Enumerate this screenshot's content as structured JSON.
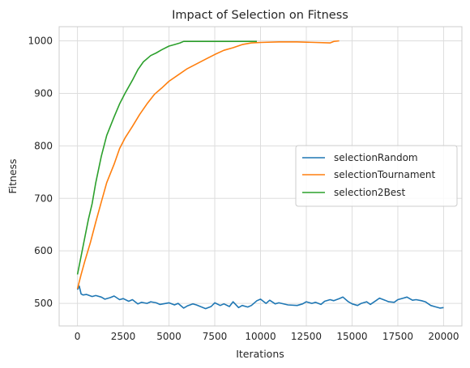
{
  "chart_data": {
    "type": "line",
    "title": "Impact of Selection on Fitness",
    "xlabel": "Iterations",
    "ylabel": "Fitness",
    "xlim": [
      -1000,
      21000
    ],
    "ylim": [
      457,
      1027
    ],
    "xticks": [
      0,
      2500,
      5000,
      7500,
      10000,
      12500,
      15000,
      17500,
      20000
    ],
    "yticks": [
      500,
      600,
      700,
      800,
      900,
      1000
    ],
    "grid": true,
    "legend_position": "center-right",
    "series": [
      {
        "name": "selectionRandom",
        "color": "#1f77b4",
        "x": [
          0,
          100,
          200,
          300,
          500,
          800,
          1000,
          1300,
          1500,
          1800,
          2000,
          2300,
          2500,
          2800,
          3000,
          3300,
          3500,
          3800,
          4000,
          4300,
          4500,
          5000,
          5300,
          5500,
          5800,
          6000,
          6300,
          6500,
          7000,
          7300,
          7500,
          7800,
          8000,
          8300,
          8500,
          8800,
          9000,
          9300,
          9500,
          9800,
          10000,
          10300,
          10500,
          10800,
          11000,
          11500,
          12000,
          12300,
          12500,
          12800,
          13000,
          13300,
          13500,
          13800,
          14000,
          14300,
          14500,
          14800,
          15000,
          15300,
          15500,
          15800,
          16000,
          16300,
          16500,
          16800,
          17000,
          17300,
          17500,
          17800,
          18000,
          18300,
          18500,
          18800,
          19000,
          19300,
          19500,
          19800,
          20000
        ],
        "y": [
          526,
          533,
          518,
          516,
          517,
          513,
          515,
          512,
          508,
          511,
          514,
          507,
          509,
          504,
          507,
          499,
          502,
          500,
          503,
          501,
          498,
          501,
          497,
          500,
          491,
          495,
          499,
          497,
          490,
          494,
          501,
          496,
          499,
          494,
          503,
          492,
          496,
          493,
          496,
          505,
          508,
          500,
          506,
          499,
          501,
          497,
          496,
          499,
          503,
          500,
          502,
          498,
          504,
          507,
          505,
          509,
          512,
          503,
          499,
          496,
          500,
          503,
          498,
          505,
          510,
          506,
          503,
          502,
          507,
          510,
          512,
          506,
          507,
          505,
          503,
          496,
          494,
          491,
          492
        ]
      },
      {
        "name": "selectionTournament",
        "color": "#ff7f0e",
        "x": [
          0,
          200,
          400,
          700,
          1000,
          1300,
          1600,
          2000,
          2300,
          2600,
          3000,
          3400,
          3800,
          4200,
          4600,
          5000,
          5500,
          6000,
          6500,
          7000,
          7500,
          8000,
          8500,
          9000,
          9500,
          10000,
          11000,
          12000,
          13000,
          13800,
          14000,
          14300
        ],
        "y": [
          528,
          555,
          580,
          615,
          655,
          693,
          730,
          765,
          795,
          815,
          837,
          860,
          880,
          898,
          910,
          923,
          935,
          947,
          956,
          965,
          974,
          982,
          987,
          993,
          996,
          997,
          998,
          998,
          997,
          996,
          999,
          1000
        ]
      },
      {
        "name": "selection2Best",
        "color": "#2ca02c",
        "x": [
          0,
          200,
          400,
          600,
          800,
          1000,
          1300,
          1600,
          2000,
          2300,
          2600,
          3000,
          3300,
          3600,
          4000,
          4300,
          4600,
          5000,
          5300,
          5600,
          5800,
          6000,
          7000,
          8000,
          9000,
          9800
        ],
        "y": [
          555,
          590,
          625,
          660,
          690,
          730,
          780,
          820,
          855,
          880,
          900,
          925,
          945,
          960,
          972,
          977,
          983,
          990,
          993,
          996,
          999,
          999,
          999,
          999,
          999,
          999
        ]
      }
    ]
  }
}
